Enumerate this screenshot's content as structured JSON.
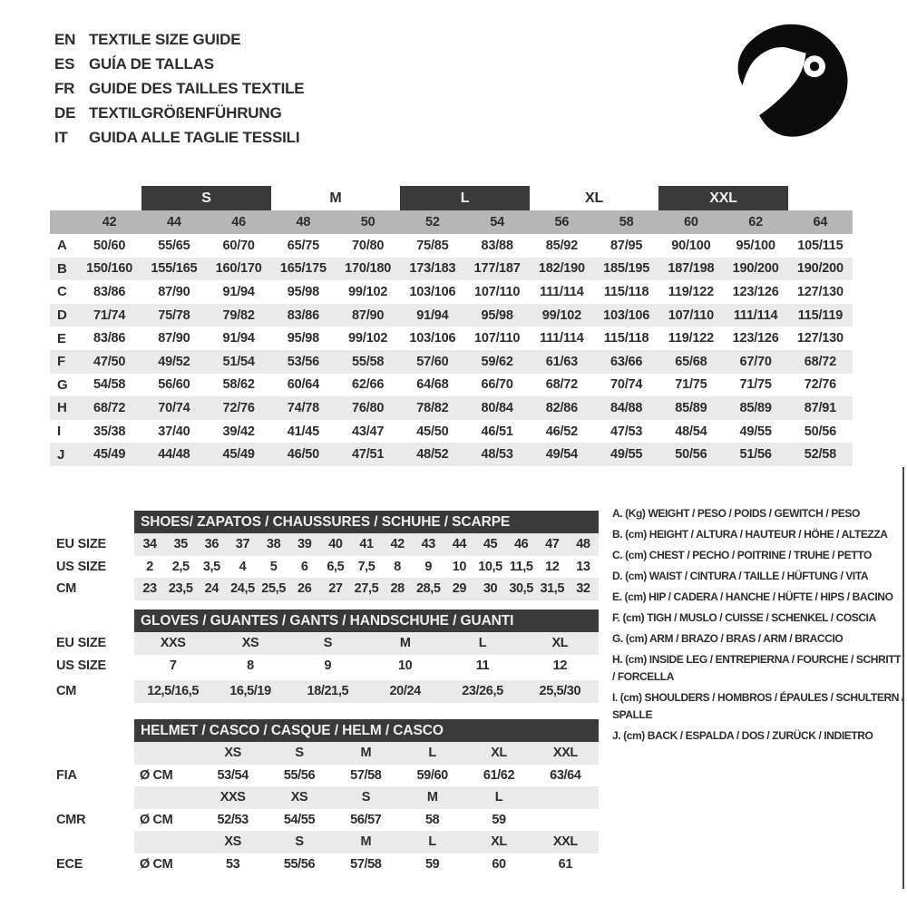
{
  "colors": {
    "dark": "#3a3a3a",
    "bar-text": "#efefef",
    "numrow": "#b6b6b6",
    "zebra": "#eaeaea",
    "ink": "#2d2d2d"
  },
  "languages": [
    {
      "code": "EN",
      "title": "TEXTILE SIZE GUIDE"
    },
    {
      "code": "ES",
      "title": "GUÍA DE TALLAS"
    },
    {
      "code": "FR",
      "title": "GUIDE DES TAILLES TEXTILE"
    },
    {
      "code": "DE",
      "title": "TEXTILGRÖßENFÜHRUNG"
    },
    {
      "code": "IT",
      "title": "GUIDA ALLE TAGLIE TESSILI"
    }
  ],
  "helmet_icon": "racing-helmet-icon",
  "size_chart": {
    "group_labels": [
      {
        "label": "S",
        "boxed": true
      },
      {
        "label": "M",
        "boxed": false
      },
      {
        "label": "L",
        "boxed": true
      },
      {
        "label": "XL",
        "boxed": false
      },
      {
        "label": "XXL",
        "boxed": true
      }
    ],
    "sizes": [
      "42",
      "44",
      "46",
      "48",
      "50",
      "52",
      "54",
      "56",
      "58",
      "60",
      "62",
      "64"
    ],
    "rows": [
      {
        "letter": "A",
        "values": [
          "50/60",
          "55/65",
          "60/70",
          "65/75",
          "70/80",
          "75/85",
          "83/88",
          "85/92",
          "87/95",
          "90/100",
          "95/100",
          "105/115"
        ]
      },
      {
        "letter": "B",
        "values": [
          "150/160",
          "155/165",
          "160/170",
          "165/175",
          "170/180",
          "173/183",
          "177/187",
          "182/190",
          "185/195",
          "187/198",
          "190/200",
          "190/200"
        ]
      },
      {
        "letter": "C",
        "values": [
          "83/86",
          "87/90",
          "91/94",
          "95/98",
          "99/102",
          "103/106",
          "107/110",
          "111/114",
          "115/118",
          "119/122",
          "123/126",
          "127/130"
        ]
      },
      {
        "letter": "D",
        "values": [
          "71/74",
          "75/78",
          "79/82",
          "83/86",
          "87/90",
          "91/94",
          "95/98",
          "99/102",
          "103/106",
          "107/110",
          "111/114",
          "115/119"
        ]
      },
      {
        "letter": "E",
        "values": [
          "83/86",
          "87/90",
          "91/94",
          "95/98",
          "99/102",
          "103/106",
          "107/110",
          "111/114",
          "115/118",
          "119/122",
          "123/126",
          "127/130"
        ]
      },
      {
        "letter": "F",
        "values": [
          "47/50",
          "49/52",
          "51/54",
          "53/56",
          "55/58",
          "57/60",
          "59/62",
          "61/63",
          "63/66",
          "65/68",
          "67/70",
          "68/72"
        ]
      },
      {
        "letter": "G",
        "values": [
          "54/58",
          "56/60",
          "58/62",
          "60/64",
          "62/66",
          "64/68",
          "66/70",
          "68/72",
          "70/74",
          "71/75",
          "71/75",
          "72/76"
        ]
      },
      {
        "letter": "H",
        "values": [
          "68/72",
          "70/74",
          "72/76",
          "74/78",
          "76/80",
          "78/82",
          "80/84",
          "82/86",
          "84/88",
          "85/89",
          "85/89",
          "87/91"
        ]
      },
      {
        "letter": "I",
        "values": [
          "35/38",
          "37/40",
          "39/42",
          "41/45",
          "43/47",
          "45/50",
          "46/51",
          "46/52",
          "47/53",
          "48/54",
          "49/55",
          "50/56"
        ]
      },
      {
        "letter": "J",
        "values": [
          "45/49",
          "44/48",
          "45/49",
          "46/50",
          "47/51",
          "48/52",
          "48/53",
          "49/54",
          "49/55",
          "50/56",
          "51/56",
          "52/58"
        ]
      }
    ]
  },
  "shoes": {
    "title": "SHOES/ ZAPATOS / CHAUSSURES / SCHUHE / SCARPE",
    "rows": [
      {
        "label": "EU SIZE",
        "shaded": true,
        "values": [
          "34",
          "35",
          "36",
          "37",
          "38",
          "39",
          "40",
          "41",
          "42",
          "43",
          "44",
          "45",
          "46",
          "47",
          "48"
        ]
      },
      {
        "label": "US SIZE",
        "shaded": false,
        "values": [
          "2",
          "2,5",
          "3,5",
          "4",
          "5",
          "6",
          "6,5",
          "7,5",
          "8",
          "9",
          "10",
          "10,5",
          "11,5",
          "12",
          "13"
        ]
      },
      {
        "label": "CM",
        "shaded": true,
        "values": [
          "23",
          "23,5",
          "24",
          "24,5",
          "25,5",
          "26",
          "27",
          "27,5",
          "28",
          "28,5",
          "29",
          "30",
          "30,5",
          "31,5",
          "32"
        ]
      }
    ]
  },
  "gloves": {
    "title": "GLOVES / GUANTES / GANTS / HANDSCHUHE / GUANTI",
    "rows": [
      {
        "label": "EU SIZE",
        "shaded": true,
        "gap": false,
        "values": [
          "XXS",
          "XS",
          "S",
          "M",
          "L",
          "XL"
        ]
      },
      {
        "label": "US SIZE",
        "shaded": false,
        "gap": false,
        "values": [
          "7",
          "8",
          "9",
          "10",
          "11",
          "12"
        ]
      },
      {
        "label": "CM",
        "shaded": true,
        "gap": true,
        "values": [
          "12,5/16,5",
          "16,5/19",
          "18/21,5",
          "20/24",
          "23/26,5",
          "25,5/30"
        ]
      }
    ]
  },
  "helmet": {
    "title": "HELMET / CASCO / CASQUE / HELM / CASCO",
    "rows": [
      {
        "label": "",
        "unit": "",
        "shaded": true,
        "values": [
          "XS",
          "S",
          "M",
          "L",
          "XL",
          "XXL"
        ]
      },
      {
        "label": "FIA",
        "unit": "Ø CM",
        "shaded": false,
        "values": [
          "53/54",
          "55/56",
          "57/58",
          "59/60",
          "61/62",
          "63/64"
        ]
      },
      {
        "label": "",
        "unit": "",
        "shaded": true,
        "values": [
          "XXS",
          "XS",
          "S",
          "M",
          "L",
          ""
        ]
      },
      {
        "label": "CMR",
        "unit": "Ø CM",
        "shaded": false,
        "values": [
          "52/53",
          "54/55",
          "56/57",
          "58",
          "59",
          ""
        ]
      },
      {
        "label": "",
        "unit": "",
        "shaded": true,
        "values": [
          "XS",
          "S",
          "M",
          "L",
          "XL",
          "XXL"
        ]
      },
      {
        "label": "ECE",
        "unit": "Ø CM",
        "shaded": false,
        "values": [
          "53",
          "55/56",
          "57/58",
          "59",
          "60",
          "61"
        ]
      }
    ]
  },
  "legend": [
    "A. (Kg) WEIGHT / PESO / POIDS / GEWITCH / PESO",
    "B. (cm) HEIGHT / ALTURA / HAUTEUR / HÖHE / ALTEZZA",
    "C. (cm) CHEST / PECHO / POITRINE / TRUHE / PETTO",
    "D. (cm) WAIST / CINTURA / TAILLE / HÜFTUNG / VITA",
    "E. (cm) HIP / CADERA / HANCHE / HÜFTE / HIPS / BACINO",
    "F. (cm) TIGH / MUSLO / CUISSE / SCHENKEL / COSCIA",
    "G. (cm) ARM / BRAZO / BRAS / ARM / BRACCIO",
    "H. (cm) INSIDE LEG / ENTREPIERNA / FOURCHE / SCHRITT / FORCELLA",
    "I. (cm) SHOULDERS / HOMBROS / ÉPAULES / SCHULTERN / SPALLE",
    "J. (cm) BACK / ESPALDA / DOS / ZURÜCK / INDIETRO"
  ]
}
